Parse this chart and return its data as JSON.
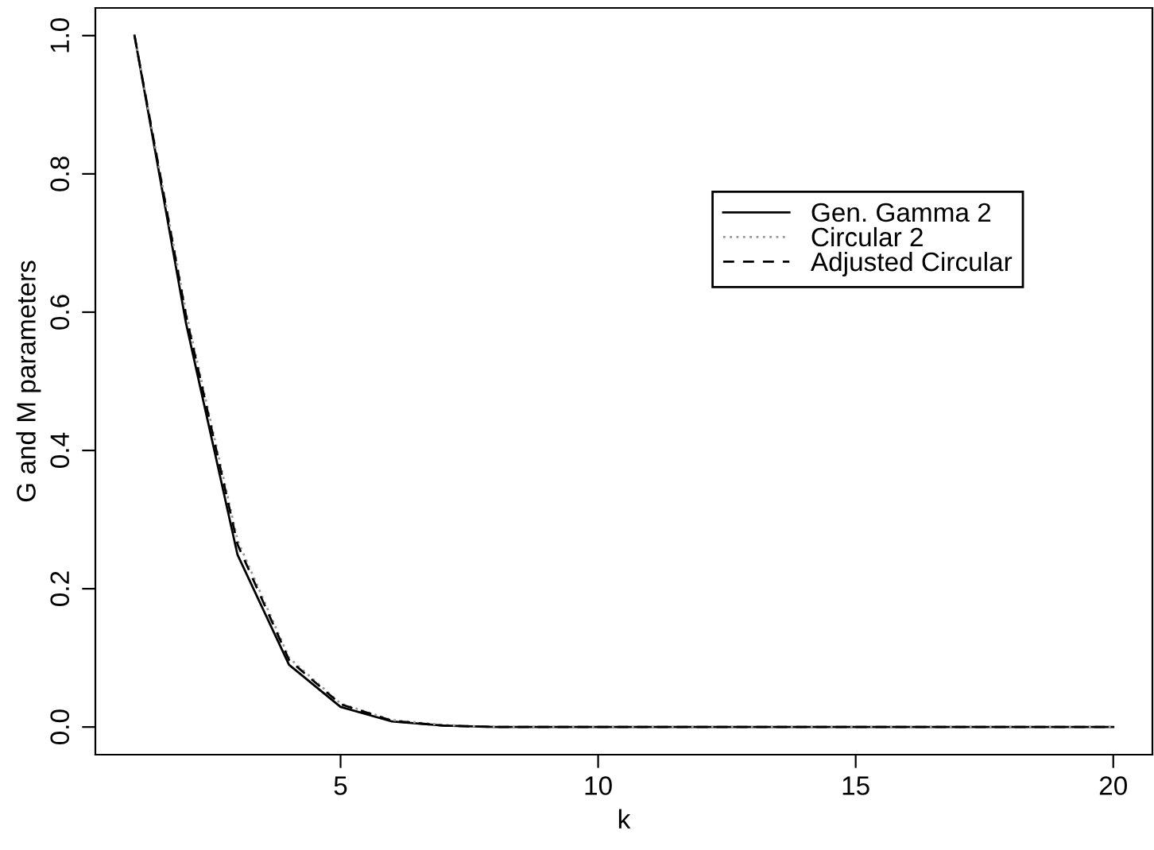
{
  "chart_data": {
    "type": "line",
    "xlabel": "k",
    "ylabel": "G and M parameters",
    "x": [
      1,
      2,
      3,
      4,
      5,
      6,
      7,
      8,
      9,
      10,
      11,
      12,
      13,
      14,
      15,
      16,
      17,
      18,
      19,
      20
    ],
    "xlim": [
      0.24,
      20.76
    ],
    "ylim": [
      -0.04,
      1.04
    ],
    "xticks": [
      5,
      10,
      15,
      20
    ],
    "yticks": [
      {
        "value": 0,
        "label": "0.0"
      },
      0.2,
      0.4,
      0.6,
      0.8,
      {
        "value": 1,
        "label": "1.0"
      }
    ],
    "grid": false,
    "legend": "right",
    "marker": "none",
    "series": [
      {
        "name": "Gen. Gamma 2",
        "color": "#000000",
        "line_style": "solid",
        "values": [
          1.0,
          0.584,
          0.249,
          0.09,
          0.029,
          0.008,
          0.002,
          0,
          0,
          0,
          0,
          0,
          0,
          0,
          0,
          0,
          0,
          0,
          0,
          0
        ]
      },
      {
        "name": "Circular 2",
        "color": "#999999",
        "line_style": "dotted",
        "values": [
          1.0,
          0.6,
          0.27,
          0.1,
          0.034,
          0.01,
          0.003,
          0,
          0,
          0,
          0,
          0,
          0,
          0,
          0,
          0,
          0,
          0,
          0,
          0
        ]
      },
      {
        "name": "Adjusted Circular",
        "color": "#000000",
        "line_style": "dashed",
        "values": [
          1.0,
          0.595,
          0.264,
          0.097,
          0.033,
          0.009,
          0.002,
          0,
          0,
          0,
          0,
          0,
          0,
          0,
          0,
          0,
          0,
          0,
          0,
          0
        ]
      }
    ]
  }
}
